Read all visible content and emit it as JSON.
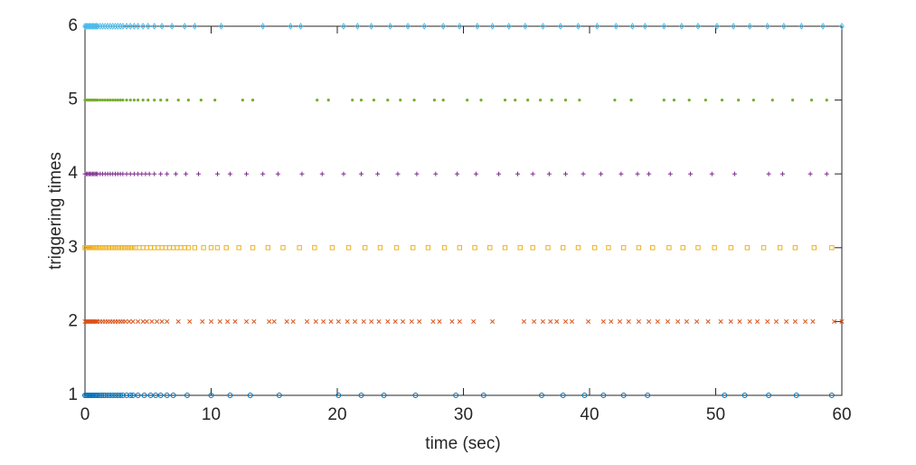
{
  "chart_data": {
    "type": "scatter",
    "xlabel": "time (sec)",
    "ylabel": "triggering times",
    "xlim": [
      0,
      60
    ],
    "ylim": [
      1,
      6
    ],
    "xticks": [
      0,
      10,
      20,
      30,
      40,
      50,
      60
    ],
    "yticks": [
      1,
      2,
      3,
      4,
      5,
      6
    ],
    "grid": false,
    "series": [
      {
        "color": "#0072bd",
        "marker": "circle",
        "x": [
          0,
          0.1,
          0.2,
          0.3,
          0.4,
          0.5,
          0.6,
          0.7,
          0.8,
          0.9,
          1.0,
          1.15,
          1.3,
          1.45,
          1.6,
          1.8,
          2.0,
          2.2,
          2.4,
          2.6,
          2.8,
          3.0,
          3.3,
          3.6,
          3.8,
          4.2,
          4.7,
          5.2,
          5.6,
          6.0,
          6.5,
          7.0,
          8.1,
          10.0,
          11.5,
          13.1,
          15.4,
          20.1,
          21.9,
          23.7,
          26.2,
          29.4,
          31.6,
          36.2,
          37.9,
          39.6,
          41.1,
          42.7,
          44.6,
          50.7,
          52.3,
          54.2,
          56.4,
          59.2
        ],
        "values": [
          1,
          1,
          1,
          1,
          1,
          1,
          1,
          1,
          1,
          1,
          1,
          1,
          1,
          1,
          1,
          1,
          1,
          1,
          1,
          1,
          1,
          1,
          1,
          1,
          1,
          1,
          1,
          1,
          1,
          1,
          1,
          1,
          1,
          1,
          1,
          1,
          1,
          1,
          1,
          1,
          1,
          1,
          1,
          1,
          1,
          1,
          1,
          1,
          1,
          1,
          1,
          1,
          1,
          1
        ]
      },
      {
        "color": "#d95319",
        "marker": "cross",
        "x": [
          0,
          0.1,
          0.2,
          0.3,
          0.4,
          0.5,
          0.6,
          0.7,
          0.8,
          0.9,
          1.0,
          1.2,
          1.4,
          1.6,
          1.8,
          2.0,
          2.2,
          2.4,
          2.6,
          2.8,
          3.0,
          3.2,
          3.5,
          3.8,
          4.2,
          4.6,
          4.9,
          5.3,
          5.7,
          6.1,
          6.5,
          7.4,
          8.3,
          9.3,
          10.0,
          10.7,
          11.3,
          11.9,
          12.8,
          13.4,
          14.6,
          15.0,
          16.0,
          16.5,
          17.6,
          18.3,
          18.9,
          19.5,
          20.1,
          20.8,
          21.4,
          22.1,
          22.7,
          23.3,
          24.0,
          24.6,
          25.2,
          25.9,
          26.5,
          27.6,
          28.1,
          29.1,
          29.7,
          30.8,
          32.3,
          34.8,
          35.6,
          36.3,
          36.9,
          37.4,
          38.1,
          38.6,
          39.9,
          41.1,
          41.7,
          42.4,
          43.1,
          43.9,
          44.7,
          45.4,
          46.2,
          47.0,
          47.7,
          48.5,
          49.4,
          50.4,
          51.2,
          51.9,
          52.7,
          53.3,
          54.1,
          54.8,
          55.6,
          56.3,
          57.1,
          57.7,
          59.4,
          60.0
        ],
        "values": [
          2,
          2,
          2,
          2,
          2,
          2,
          2,
          2,
          2,
          2,
          2,
          2,
          2,
          2,
          2,
          2,
          2,
          2,
          2,
          2,
          2,
          2,
          2,
          2,
          2,
          2,
          2,
          2,
          2,
          2,
          2,
          2,
          2,
          2,
          2,
          2,
          2,
          2,
          2,
          2,
          2,
          2,
          2,
          2,
          2,
          2,
          2,
          2,
          2,
          2,
          2,
          2,
          2,
          2,
          2,
          2,
          2,
          2,
          2,
          2,
          2,
          2,
          2,
          2,
          2,
          2,
          2,
          2,
          2,
          2,
          2,
          2,
          2,
          2,
          2,
          2,
          2,
          2,
          2,
          2,
          2,
          2,
          2,
          2,
          2,
          2,
          2,
          2,
          2,
          2,
          2,
          2,
          2,
          2,
          2,
          2,
          2,
          2
        ]
      },
      {
        "color": "#edb120",
        "marker": "square",
        "x": [
          0,
          0.1,
          0.2,
          0.3,
          0.4,
          0.5,
          0.6,
          0.7,
          0.8,
          0.9,
          1.0,
          1.2,
          1.4,
          1.6,
          1.8,
          2.0,
          2.2,
          2.4,
          2.6,
          2.8,
          3.0,
          3.2,
          3.4,
          3.6,
          3.8,
          4.0,
          4.3,
          4.6,
          4.9,
          5.2,
          5.5,
          5.8,
          6.1,
          6.4,
          6.7,
          7.0,
          7.3,
          7.6,
          7.9,
          8.2,
          8.7,
          9.4,
          10.0,
          10.5,
          11.2,
          12.2,
          13.3,
          14.5,
          15.7,
          17.0,
          18.2,
          19.6,
          20.9,
          22.2,
          23.4,
          24.7,
          26.0,
          27.2,
          28.5,
          29.7,
          30.9,
          32.1,
          33.3,
          34.5,
          35.5,
          36.7,
          37.9,
          39.1,
          40.4,
          41.5,
          42.7,
          43.9,
          45.0,
          46.3,
          47.4,
          48.6,
          49.9,
          51.2,
          52.5,
          53.8,
          55.1,
          56.3,
          57.8,
          59.2
        ],
        "values": [
          3,
          3,
          3,
          3,
          3,
          3,
          3,
          3,
          3,
          3,
          3,
          3,
          3,
          3,
          3,
          3,
          3,
          3,
          3,
          3,
          3,
          3,
          3,
          3,
          3,
          3,
          3,
          3,
          3,
          3,
          3,
          3,
          3,
          3,
          3,
          3,
          3,
          3,
          3,
          3,
          3,
          3,
          3,
          3,
          3,
          3,
          3,
          3,
          3,
          3,
          3,
          3,
          3,
          3,
          3,
          3,
          3,
          3,
          3,
          3,
          3,
          3,
          3,
          3,
          3,
          3,
          3,
          3,
          3,
          3,
          3,
          3,
          3,
          3,
          3,
          3,
          3,
          3,
          3,
          3,
          3,
          3,
          3,
          3
        ]
      },
      {
        "color": "#7e2f8e",
        "marker": "plus",
        "x": [
          0,
          0.1,
          0.2,
          0.3,
          0.4,
          0.5,
          0.6,
          0.7,
          0.8,
          0.9,
          1.0,
          1.2,
          1.4,
          1.6,
          1.8,
          2.0,
          2.2,
          2.4,
          2.6,
          2.8,
          3.0,
          3.3,
          3.6,
          3.9,
          4.2,
          4.5,
          4.8,
          5.1,
          5.5,
          6.0,
          6.5,
          7.2,
          8.0,
          9.0,
          10.5,
          11.5,
          12.8,
          14.1,
          15.3,
          17.2,
          18.8,
          20.5,
          21.9,
          23.2,
          24.8,
          26.3,
          27.8,
          29.5,
          31.0,
          32.8,
          34.3,
          35.5,
          36.8,
          38.1,
          39.5,
          40.9,
          42.5,
          43.8,
          44.7,
          46.4,
          48.0,
          49.7,
          51.5,
          54.2,
          55.3,
          57.5,
          58.8
        ],
        "values": [
          4,
          4,
          4,
          4,
          4,
          4,
          4,
          4,
          4,
          4,
          4,
          4,
          4,
          4,
          4,
          4,
          4,
          4,
          4,
          4,
          4,
          4,
          4,
          4,
          4,
          4,
          4,
          4,
          4,
          4,
          4,
          4,
          4,
          4,
          4,
          4,
          4,
          4,
          4,
          4,
          4,
          4,
          4,
          4,
          4,
          4,
          4,
          4,
          4,
          4,
          4,
          4,
          4,
          4,
          4,
          4,
          4,
          4,
          4,
          4,
          4,
          4,
          4,
          4,
          4,
          4,
          4
        ]
      },
      {
        "color": "#77ac30",
        "marker": "dot",
        "x": [
          0,
          0.1,
          0.2,
          0.3,
          0.4,
          0.5,
          0.6,
          0.7,
          0.8,
          0.9,
          1.0,
          1.2,
          1.4,
          1.6,
          1.8,
          2.0,
          2.2,
          2.4,
          2.6,
          2.8,
          3.0,
          3.3,
          3.6,
          3.9,
          4.2,
          4.6,
          5.0,
          5.5,
          6.0,
          6.5,
          7.4,
          8.2,
          9.2,
          10.3,
          12.5,
          13.3,
          18.4,
          19.3,
          21.2,
          21.9,
          22.9,
          24.0,
          25.0,
          26.1,
          27.7,
          28.4,
          30.3,
          31.4,
          33.3,
          34.1,
          35.1,
          36.1,
          37.0,
          38.1,
          39.2,
          42.0,
          43.3,
          45.9,
          46.7,
          47.9,
          49.2,
          50.5,
          51.8,
          53.0,
          54.5,
          56.1,
          57.6,
          58.8
        ],
        "values": [
          5,
          5,
          5,
          5,
          5,
          5,
          5,
          5,
          5,
          5,
          5,
          5,
          5,
          5,
          5,
          5,
          5,
          5,
          5,
          5,
          5,
          5,
          5,
          5,
          5,
          5,
          5,
          5,
          5,
          5,
          5,
          5,
          5,
          5,
          5,
          5,
          5,
          5,
          5,
          5,
          5,
          5,
          5,
          5,
          5,
          5,
          5,
          5,
          5,
          5,
          5,
          5,
          5,
          5,
          5,
          5,
          5,
          5,
          5,
          5,
          5,
          5,
          5,
          5,
          5,
          5,
          5,
          5
        ]
      },
      {
        "color": "#4dbeee",
        "marker": "diamond",
        "x": [
          0,
          0.1,
          0.2,
          0.3,
          0.4,
          0.5,
          0.6,
          0.7,
          0.8,
          0.9,
          1.0,
          1.2,
          1.4,
          1.6,
          1.8,
          2.0,
          2.2,
          2.4,
          2.6,
          2.8,
          3.0,
          3.3,
          3.6,
          3.9,
          4.2,
          4.6,
          5.0,
          5.5,
          6.1,
          6.9,
          7.9,
          8.7,
          10.8,
          14.1,
          16.3,
          17.1,
          20.5,
          21.6,
          22.7,
          24.2,
          25.6,
          26.9,
          28.4,
          29.7,
          31.1,
          32.3,
          33.6,
          34.9,
          36.3,
          37.7,
          39.1,
          40.6,
          42.1,
          43.4,
          44.4,
          45.9,
          47.3,
          48.6,
          50.1,
          51.4,
          52.7,
          54.1,
          55.4,
          56.8,
          58.5,
          60.0
        ],
        "values": [
          6,
          6,
          6,
          6,
          6,
          6,
          6,
          6,
          6,
          6,
          6,
          6,
          6,
          6,
          6,
          6,
          6,
          6,
          6,
          6,
          6,
          6,
          6,
          6,
          6,
          6,
          6,
          6,
          6,
          6,
          6,
          6,
          6,
          6,
          6,
          6,
          6,
          6,
          6,
          6,
          6,
          6,
          6,
          6,
          6,
          6,
          6,
          6,
          6,
          6,
          6,
          6,
          6,
          6,
          6,
          6,
          6,
          6,
          6,
          6,
          6,
          6,
          6,
          6,
          6,
          6
        ]
      }
    ]
  }
}
